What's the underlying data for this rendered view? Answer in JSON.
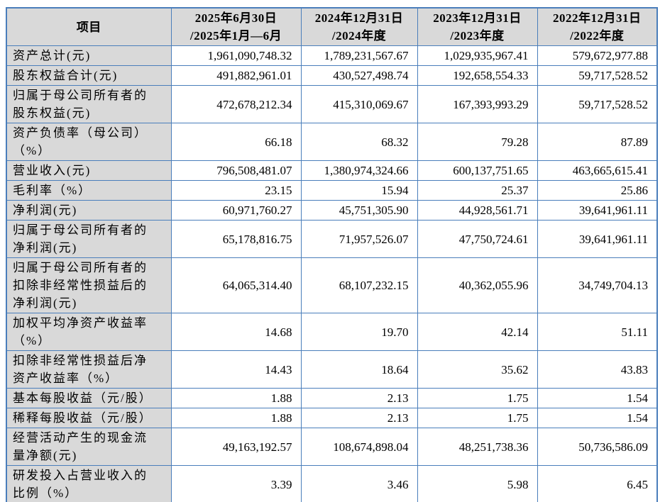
{
  "colors": {
    "table_border": "#4a7ebb",
    "shaded_cell_bg": "#d9d9d9",
    "data_cell_bg": "#ffffff",
    "text": "#000000"
  },
  "table": {
    "header": {
      "item_label": "项目",
      "periods": [
        {
          "line1": "2025年6月30日",
          "line2": "/2025年1月—6月"
        },
        {
          "line1": "2024年12月31日",
          "line2": "/2024年度"
        },
        {
          "line1": "2023年12月31日",
          "line2": "/2023年度"
        },
        {
          "line1": "2022年12月31日",
          "line2": "/2022年度"
        }
      ]
    },
    "rows": [
      {
        "label": "资产总计(元)",
        "values": [
          "1,961,090,748.32",
          "1,789,231,567.67",
          "1,029,935,967.41",
          "579,672,977.88"
        ]
      },
      {
        "label": "股东权益合计(元)",
        "values": [
          "491,882,961.01",
          "430,527,498.74",
          "192,658,554.33",
          "59,717,528.52"
        ]
      },
      {
        "label": "归属于母公司所有者的\n股东权益(元)",
        "values": [
          "472,678,212.34",
          "415,310,069.67",
          "167,393,993.29",
          "59,717,528.52"
        ]
      },
      {
        "label": "资产负债率（母公司）\n（%）",
        "values": [
          "66.18",
          "68.32",
          "79.28",
          "87.89"
        ]
      },
      {
        "label": "营业收入(元)",
        "values": [
          "796,508,481.07",
          "1,380,974,324.66",
          "600,137,751.65",
          "463,665,615.41"
        ]
      },
      {
        "label": "毛利率（%）",
        "values": [
          "23.15",
          "15.94",
          "25.37",
          "25.86"
        ]
      },
      {
        "label": "净利润(元)",
        "values": [
          "60,971,760.27",
          "45,751,305.90",
          "44,928,561.71",
          "39,641,961.11"
        ]
      },
      {
        "label": "归属于母公司所有者的\n净利润(元)",
        "values": [
          "65,178,816.75",
          "71,957,526.07",
          "47,750,724.61",
          "39,641,961.11"
        ]
      },
      {
        "label": "归属于母公司所有者的\n扣除非经常性损益后的\n净利润(元)",
        "values": [
          "64,065,314.40",
          "68,107,232.15",
          "40,362,055.96",
          "34,749,704.13"
        ]
      },
      {
        "label": "加权平均净资产收益率\n（%）",
        "values": [
          "14.68",
          "19.70",
          "42.14",
          "51.11"
        ]
      },
      {
        "label": "扣除非经常性损益后净\n资产收益率（%）",
        "values": [
          "14.43",
          "18.64",
          "35.62",
          "43.83"
        ]
      },
      {
        "label": "基本每股收益（元/股）",
        "values": [
          "1.88",
          "2.13",
          "1.75",
          "1.54"
        ]
      },
      {
        "label": "稀释每股收益（元/股）",
        "values": [
          "1.88",
          "2.13",
          "1.75",
          "1.54"
        ]
      },
      {
        "label": "经营活动产生的现金流\n量净额(元)",
        "values": [
          "49,163,192.57",
          "108,674,898.04",
          "48,251,738.36",
          "50,736,586.09"
        ]
      },
      {
        "label": "研发投入占营业收入的\n比例（%）",
        "values": [
          "3.39",
          "3.46",
          "5.98",
          "6.45"
        ]
      }
    ]
  }
}
